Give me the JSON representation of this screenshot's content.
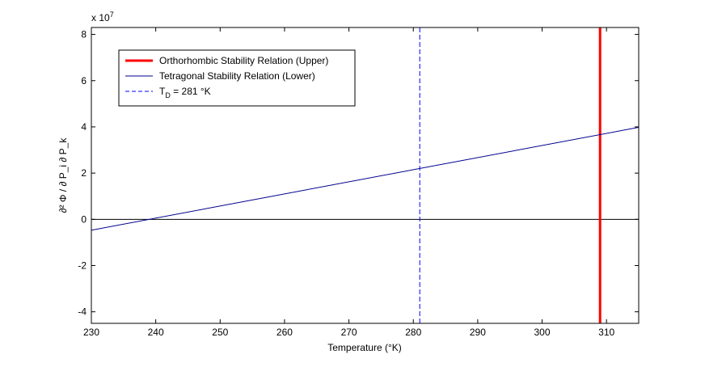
{
  "chart_data": {
    "type": "line",
    "title": "",
    "xlabel": "Temperature (°K)",
    "ylabel": "∂² Φ / ∂ P_i ∂ P_k",
    "y_exponent_label": "x 10",
    "y_exponent_power": "7",
    "xlim": [
      230,
      315
    ],
    "ylim": [
      -4.5,
      8.3
    ],
    "x_ticks": [
      230,
      240,
      250,
      260,
      270,
      280,
      290,
      300,
      310
    ],
    "y_ticks": [
      -4,
      -2,
      0,
      2,
      4,
      6,
      8
    ],
    "grid": false,
    "legend_position": "top-left",
    "series": [
      {
        "name": "Orthorhombic Stability Relation (Upper)",
        "kind": "vertical",
        "x_value": 309,
        "color": "#ff0000",
        "style": "solid-thick"
      },
      {
        "name": "Tetragonal Stability Relation (Lower)",
        "kind": "line",
        "x": [
          230,
          315
        ],
        "y": [
          -0.47,
          3.98
        ],
        "color": "#00008b",
        "style": "solid"
      },
      {
        "name": "T_D = 281 °K",
        "kind": "vertical",
        "x_value": 281,
        "color": "#0000ff",
        "style": "dashed"
      }
    ],
    "reference_lines": [
      {
        "kind": "horizontal",
        "y_value": 0,
        "color": "#000000"
      }
    ]
  }
}
